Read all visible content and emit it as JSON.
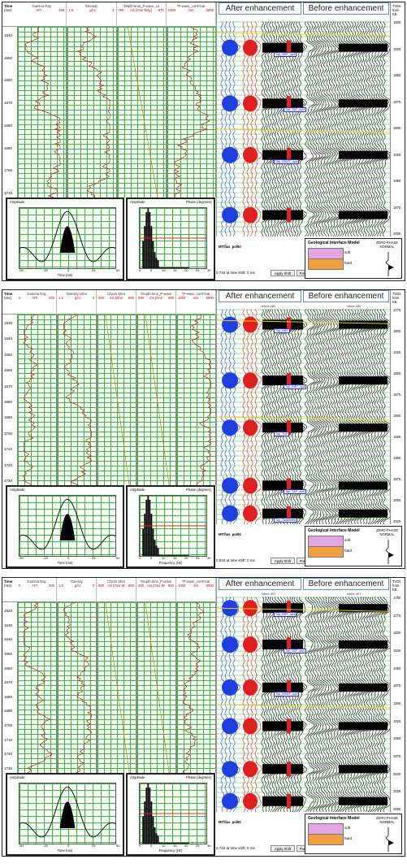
{
  "panels": [
    {
      "time_label": "Time",
      "time_unit": "(ms)",
      "tracks": [
        {
          "title": "Gamma Ray",
          "left": "",
          "unit": "API",
          "right": "200"
        },
        {
          "title": "*Density",
          "left": "1.5",
          "unit": "g/cc",
          "right": "3"
        },
        {
          "title": "*Depth-time_P-wave_co",
          "left": "780",
          "unit": "ms (One Way)",
          "right": "870"
        },
        {
          "title": "*P-wave_corrFinal",
          "left": "1000",
          "unit": "m/s",
          "right": "6000"
        }
      ],
      "time_ticks": [
        "1640",
        "1650",
        "1660",
        "1670",
        "1680",
        "1690",
        "1700",
        "1710"
      ],
      "after_label": "After enhancement",
      "before_label": "Before enhancement",
      "inline_after": "",
      "inline_before": "",
      "tvd_header": [
        "TVDs",
        "from",
        "KB"
      ],
      "tvd_ticks": [
        "1800",
        "1825",
        "1850",
        "1875",
        "1900",
        "1925",
        "1950",
        "1975",
        "2000"
      ],
      "horizons": [
        "Top_BRF_upd",
        "Top_TAF_upd",
        "Top_BSMT_upd"
      ],
      "wavelet": {
        "title": "Amplitude",
        "ticks_x": [
          "-50",
          "-25",
          "0",
          "25",
          "50"
        ],
        "xlabel": "Time (ms)"
      },
      "spectrum": {
        "title": "Amplitude",
        "title_right": "Phase (degrees)",
        "ticks_x": [
          "0",
          "5",
          "10",
          "15",
          "20",
          "25",
          "30"
        ],
        "xlabel": ""
      },
      "well_name": "MT/fias_pol90",
      "status_text": "0.740 at time shift: 0 ms",
      "apply_shift": "Apply Shift",
      "parameters": "Parame",
      "geo_title": "Geological Interface Model",
      "zero_phase": [
        "ZERO PHASE",
        "NORMAL"
      ],
      "soft": "soft",
      "hard": "hard"
    },
    {
      "time_label": "Time",
      "time_unit": "(ms)",
      "tracks": [
        {
          "title": "Gamma Ray",
          "left": "0",
          "unit": "API",
          "right": "200"
        },
        {
          "title": "*Density Litho",
          "left": "1.5",
          "unit": "g/cc",
          "right": "3"
        },
        {
          "title": "Check Shot",
          "left": "800",
          "unit": "ms (One",
          "right": "900"
        },
        {
          "title": "*Depth-time_P-wave",
          "left": "500",
          "unit": "ms (One",
          "right": "900"
        },
        {
          "title": "*P-wave_corrFinal",
          "left": "1000",
          "unit": "m/s",
          "right": "6000"
        }
      ],
      "time_ticks": [
        "1630",
        "1640",
        "1650",
        "1660",
        "1670",
        "1680",
        "1690",
        "1700",
        "1710",
        "1720",
        "1730"
      ],
      "after_label": "After enhancement",
      "before_label": "Before enhancement",
      "inline_after": "Inline 282",
      "inline_before": "Inline 282",
      "tvd_header": [
        "TVDs",
        "from",
        "KB"
      ],
      "tvd_ticks": [
        "1775",
        "1800",
        "1825",
        "1850",
        "1875",
        "1900",
        "1925",
        "1950",
        "1975",
        "2000",
        "2025"
      ],
      "horizons": [
        "Top_BRF",
        "Top_BRF_upd",
        "Top_TAF",
        "Top_TAF_upd",
        "Top_Basement"
      ],
      "wavelet": {
        "title": "Amplitude",
        "ticks_x": [
          "-50",
          "-25",
          "0",
          "25",
          "50"
        ],
        "xlabel": "Time (ms)"
      },
      "spectrum": {
        "title": "Amplitude",
        "title_right": "Phase (degrees)",
        "ticks_x": [
          "0",
          "5",
          "10",
          "15",
          "20",
          "25",
          "30"
        ],
        "xlabel": "Frequency (Hz)"
      },
      "well_name": "MT/fias_pol90",
      "status_text": "0.810 at time shift: 0 ms",
      "apply_shift": "Apply Shift",
      "parameters": "Parame",
      "geo_title": "Geological Interface Model",
      "zero_phase": [
        "ZERO PHASE",
        "NORMAL"
      ],
      "soft": "soft",
      "hard": "hard"
    },
    {
      "time_label": "Time",
      "time_unit": "(ms)",
      "tracks": [
        {
          "title": "Gamma Ray",
          "left": "0",
          "unit": "API",
          "right": "200"
        },
        {
          "title": "*Density",
          "left": "1.5",
          "unit": "g/cc",
          "right": "3"
        },
        {
          "title": "Check Shot",
          "left": "800",
          "unit": "ms (One W",
          "right": "900"
        },
        {
          "title": "*Depth-time_P-wave",
          "left": "200",
          "unit": "ms (One W",
          "right": "900"
        },
        {
          "title": "*P-wave_corrFinal",
          "left": "1000",
          "unit": "m/s",
          "right": "6000"
        }
      ],
      "time_ticks": [
        "1620",
        "1630",
        "1640",
        "1650",
        "1660",
        "1670",
        "1680",
        "1690",
        "1700",
        "1710",
        "1720",
        "1730"
      ],
      "after_label": "After enhancement",
      "before_label": "Before enhancement",
      "inline_after": "Inline 407",
      "inline_before": "Inline 407",
      "tvd_header": [
        "TVDs",
        "from",
        "KB"
      ],
      "tvd_ticks": [
        "1750",
        "1775",
        "1800",
        "1825",
        "1850",
        "1875",
        "1900",
        "1925",
        "1950",
        "1975",
        "2000",
        "2025",
        "2050"
      ],
      "horizons": [
        "Top_BRF_upd",
        "Top_TAF_upd",
        "Top_BSMT_upd"
      ],
      "wavelet": {
        "title": "Amplitude",
        "ticks_x": [
          "-50",
          "-25",
          "0",
          "25",
          "50"
        ],
        "xlabel": "Time (ms)"
      },
      "spectrum": {
        "title": "Amplitude",
        "title_right": "Phase (degrees)",
        "ticks_x": [
          "0",
          "5",
          "10",
          "15",
          "20",
          "25",
          "30"
        ],
        "xlabel": "Frequency (Hz)"
      },
      "well_name": "MT/fias_pol90",
      "status_text": "0.722 at time shift: 0 ms",
      "apply_shift": "Apply Shift",
      "parameters": "Parame",
      "geo_title": "Geological Interface Model",
      "zero_phase": [
        "ZERO PHASE",
        "NORMAL"
      ],
      "soft": "soft",
      "hard": "hard"
    }
  ]
}
